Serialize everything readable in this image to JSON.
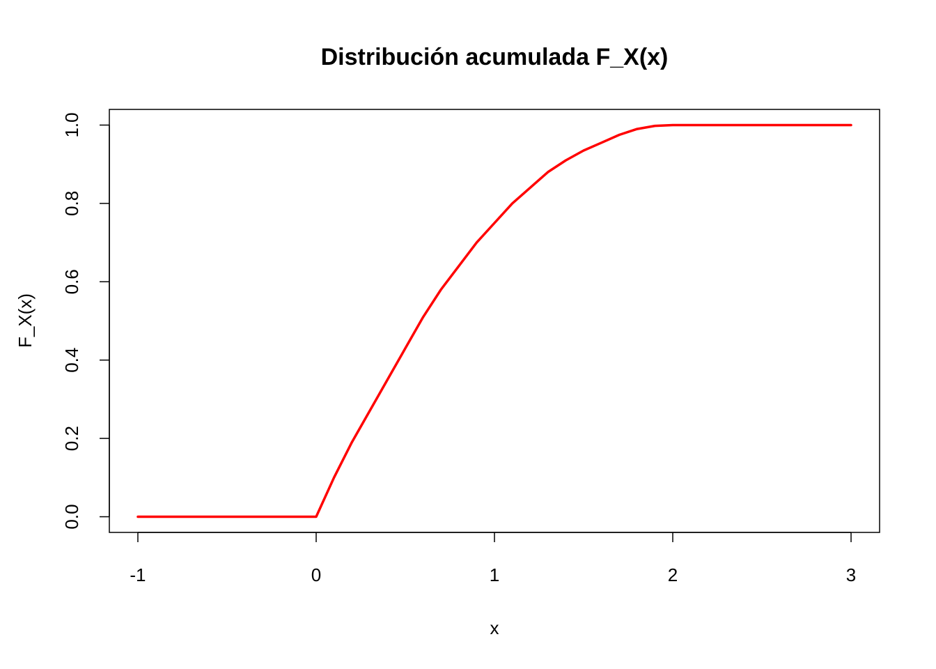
{
  "chart_data": {
    "type": "line",
    "title": "Distribución acumulada F_X(x)",
    "xlabel": "x",
    "ylabel": "F_X(x)",
    "xlim": [
      -1.16,
      3.16
    ],
    "ylim": [
      -0.04,
      1.04
    ],
    "x_ticks": [
      -1,
      0,
      1,
      2,
      3
    ],
    "x_tick_labels": [
      "-1",
      "0",
      "1",
      "2",
      "3"
    ],
    "y_ticks": [
      0,
      0.2,
      0.4,
      0.6,
      0.8,
      1
    ],
    "y_tick_labels": [
      "0.0",
      "0.2",
      "0.4",
      "0.6",
      "0.8",
      "1.0"
    ],
    "grid": false,
    "series": [
      {
        "color": "#ff0000",
        "x": [
          -1,
          -0.5,
          0,
          0.1,
          0.2,
          0.3,
          0.4,
          0.5,
          0.6,
          0.7,
          0.8,
          0.9,
          1.0,
          1.1,
          1.2,
          1.3,
          1.4,
          1.5,
          1.6,
          1.7,
          1.8,
          1.9,
          2.0,
          2.5,
          3
        ],
        "y": [
          0,
          0,
          0,
          0.1,
          0.19,
          0.27,
          0.35,
          0.43,
          0.51,
          0.58,
          0.64,
          0.7,
          0.75,
          0.8,
          0.84,
          0.88,
          0.91,
          0.935,
          0.955,
          0.975,
          0.99,
          0.998,
          1.0,
          1.0,
          1.0
        ]
      }
    ]
  }
}
